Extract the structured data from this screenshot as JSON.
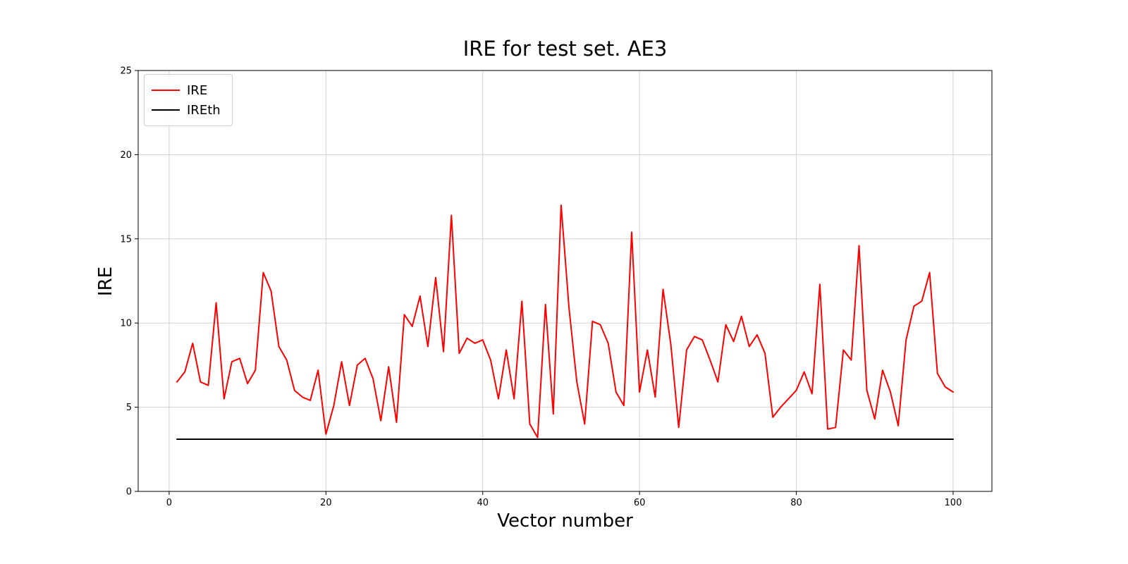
{
  "chart_data": {
    "type": "line",
    "title": "IRE for test set. AE3",
    "xlabel": "Vector number",
    "ylabel": "IRE",
    "xlim": [
      -3.95,
      104.95
    ],
    "ylim": [
      0,
      25
    ],
    "xticks": [
      0,
      20,
      40,
      60,
      80,
      100
    ],
    "yticks": [
      0,
      5,
      10,
      15,
      20,
      25
    ],
    "grid": true,
    "legend": {
      "position": "upper left",
      "entries": [
        {
          "label": "IRE",
          "color": "#ff0000"
        },
        {
          "label": "IREth",
          "color": "#000000"
        }
      ]
    },
    "series": [
      {
        "name": "IRE",
        "color": "#ff0000",
        "x_start": 1,
        "x_step": 1,
        "values": [
          6.5,
          7.1,
          8.8,
          6.5,
          6.3,
          11.2,
          5.5,
          7.7,
          7.9,
          6.4,
          7.2,
          13.0,
          11.9,
          8.6,
          7.8,
          6.0,
          5.6,
          5.4,
          7.2,
          3.4,
          5.1,
          7.7,
          5.1,
          7.5,
          7.9,
          6.7,
          4.2,
          7.4,
          4.1,
          10.5,
          9.8,
          11.6,
          8.6,
          12.7,
          8.3,
          16.4,
          8.2,
          9.1,
          8.8,
          9.0,
          7.8,
          5.5,
          8.4,
          5.5,
          11.3,
          4.0,
          3.2,
          11.1,
          4.6,
          17.0,
          10.9,
          6.5,
          4.0,
          10.1,
          9.9,
          8.8,
          5.9,
          5.1,
          15.4,
          5.9,
          8.4,
          5.6,
          12.0,
          8.7,
          3.8,
          8.4,
          9.2,
          9.0,
          7.8,
          6.5,
          9.9,
          8.9,
          10.4,
          8.6,
          9.3,
          8.2,
          4.4,
          5.0,
          5.5,
          6.0,
          7.1,
          5.8,
          12.3,
          3.7,
          3.8,
          8.4,
          7.8,
          14.6,
          6.0,
          4.3,
          7.2,
          5.9,
          3.9,
          9.0,
          11.0,
          11.3,
          13.0,
          7.0,
          6.2,
          5.9
        ]
      },
      {
        "name": "IREth",
        "color": "#000000",
        "x_range": [
          1,
          100
        ],
        "constant": 3.1
      }
    ]
  },
  "colors": {
    "grid": "#d0d0d0",
    "axis": "#000000",
    "background": "#ffffff",
    "ire_line": "#ff0000",
    "ireth_line": "#000000"
  }
}
